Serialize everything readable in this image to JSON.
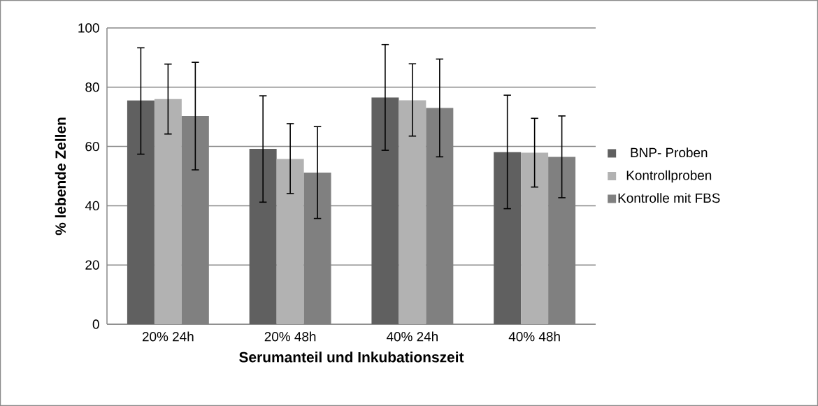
{
  "chart_data": {
    "type": "bar",
    "xlabel": "Serumanteil und Inkubationszeit",
    "ylabel": "% lebende Zellen",
    "categories": [
      "20% 24h",
      "20% 48h",
      "40% 24h",
      "40% 48h"
    ],
    "series": [
      {
        "name": "BNP- Proben",
        "color": "#606060",
        "values": [
          75.5,
          59.2,
          76.5,
          58.1
        ],
        "errors": [
          [
            57.4,
            93.3
          ],
          [
            41.2,
            77.1
          ],
          [
            58.7,
            94.4
          ],
          [
            39.0,
            77.3
          ]
        ]
      },
      {
        "name": "Kontrollproben",
        "color": "#b2b2b2",
        "values": [
          76.0,
          55.8,
          75.6,
          57.9
        ],
        "errors": [
          [
            64.2,
            87.8
          ],
          [
            44.1,
            67.7
          ],
          [
            63.5,
            87.9
          ],
          [
            46.3,
            69.5
          ]
        ]
      },
      {
        "name": "Kontrolle mit FBS",
        "color": "#808080",
        "values": [
          70.3,
          51.2,
          73.0,
          56.5
        ],
        "errors": [
          [
            52.1,
            88.4
          ],
          [
            35.7,
            66.7
          ],
          [
            56.5,
            89.5
          ],
          [
            42.7,
            70.3
          ]
        ]
      }
    ],
    "ylim": [
      0,
      100
    ],
    "yticks": [
      0,
      20,
      40,
      60,
      80,
      100
    ],
    "grid": "y",
    "legend": "right"
  }
}
